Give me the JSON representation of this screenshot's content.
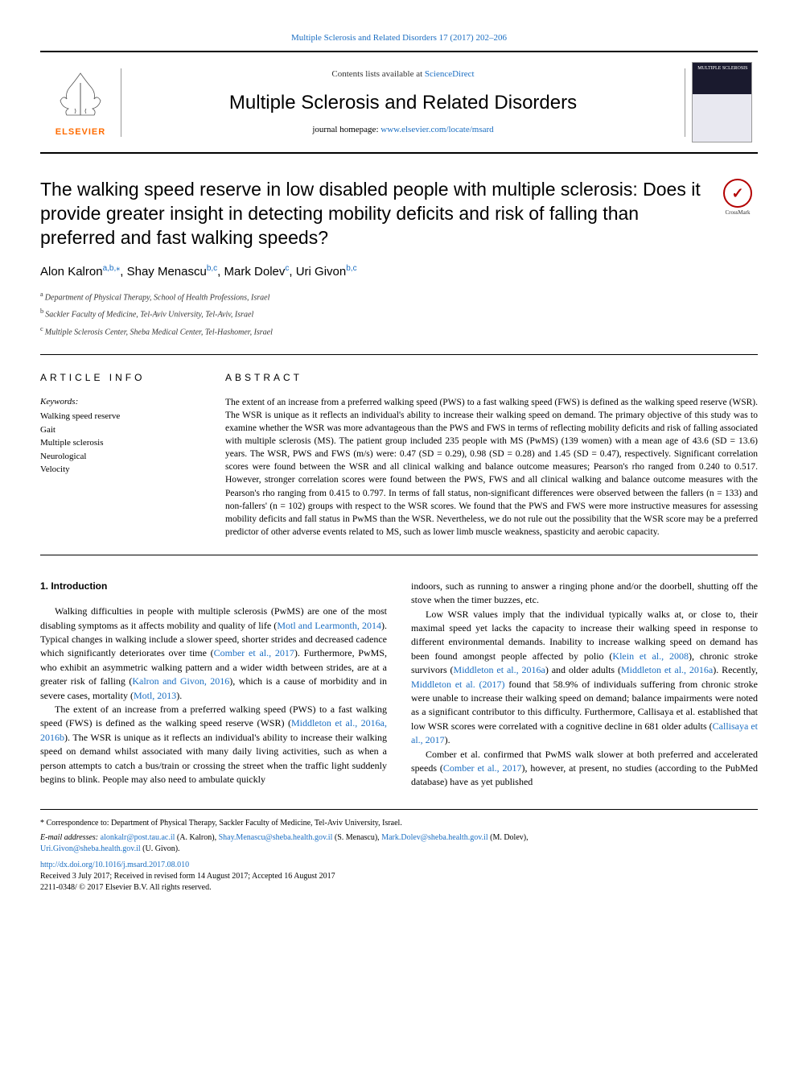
{
  "top_link_journal": "Multiple Sclerosis and Related Disorders 17 (2017) 202–206",
  "header": {
    "contents_prefix": "Contents lists available at ",
    "contents_link": "ScienceDirect",
    "journal_name": "Multiple Sclerosis and Related Disorders",
    "homepage_prefix": "journal homepage: ",
    "homepage_url": "www.elsevier.com/locate/msard",
    "publisher": "ELSEVIER",
    "cover_label": "MULTIPLE\nSCLEROSIS"
  },
  "article": {
    "title": "The walking speed reserve in low disabled people with multiple sclerosis: Does it provide greater insight in detecting mobility deficits and risk of falling than preferred and fast walking speeds?",
    "authors_html": "Alon Kalron<sup>a,b,</sup>*, Shay Menascu<sup>b,c</sup>, Mark Dolev<sup>c</sup>, Uri Givon<sup>b,c</sup>",
    "authors": [
      {
        "name": "Alon Kalron",
        "aff": "a,b,",
        "corr": true
      },
      {
        "name": "Shay Menascu",
        "aff": "b,c"
      },
      {
        "name": "Mark Dolev",
        "aff": "c"
      },
      {
        "name": "Uri Givon",
        "aff": "b,c"
      }
    ],
    "affiliations": [
      {
        "key": "a",
        "text": "Department of Physical Therapy, School of Health Professions, Israel"
      },
      {
        "key": "b",
        "text": "Sackler Faculty of Medicine, Tel-Aviv University, Tel-Aviv, Israel"
      },
      {
        "key": "c",
        "text": "Multiple Sclerosis Center, Sheba Medical Center, Tel-Hashomer, Israel"
      }
    ],
    "crossmark": "CrossMark"
  },
  "info": {
    "heading": "ARTICLE INFO",
    "keywords_label": "Keywords:",
    "keywords": [
      "Walking speed reserve",
      "Gait",
      "Multiple sclerosis",
      "Neurological",
      "Velocity"
    ]
  },
  "abstract": {
    "heading": "ABSTRACT",
    "text": "The extent of an increase from a preferred walking speed (PWS) to a fast walking speed (FWS) is defined as the walking speed reserve (WSR). The WSR is unique as it reflects an individual's ability to increase their walking speed on demand. The primary objective of this study was to examine whether the WSR was more advantageous than the PWS and FWS in terms of reflecting mobility deficits and risk of falling associated with multiple sclerosis (MS). The patient group included 235 people with MS (PwMS) (139 women) with a mean age of 43.6 (SD = 13.6) years. The WSR, PWS and FWS (m/s) were: 0.47 (SD = 0.29), 0.98 (SD = 0.28) and 1.45 (SD = 0.47), respectively. Significant correlation scores were found between the WSR and all clinical walking and balance outcome measures; Pearson's rho ranged from 0.240 to 0.517. However, stronger correlation scores were found between the PWS, FWS and all clinical walking and balance outcome measures with the Pearson's rho ranging from 0.415 to 0.797. In terms of fall status, non-significant differences were observed between the fallers (n = 133) and non-fallers' (n = 102) groups with respect to the WSR scores. We found that the PWS and FWS were more instructive measures for assessing mobility deficits and fall status in PwMS than the WSR. Nevertheless, we do not rule out the possibility that the WSR score may be a preferred predictor of other adverse events related to MS, such as lower limb muscle weakness, spasticity and aerobic capacity."
  },
  "intro": {
    "heading": "1. Introduction",
    "p1a": "Walking difficulties in people with multiple sclerosis (PwMS) are one of the most disabling symptoms as it affects mobility and quality of life (",
    "c1": "Motl and Learmonth, 2014",
    "p1b": "). Typical changes in walking include a slower speed, shorter strides and decreased cadence which significantly deteriorates over time (",
    "c2": "Comber et al., 2017",
    "p1c": "). Furthermore, PwMS, who exhibit an asymmetric walking pattern and a wider width between strides, are at a greater risk of falling (",
    "c3": "Kalron and Givon, 2016",
    "p1d": "), which is a cause of morbidity and in severe cases, mortality (",
    "c4": "Motl, 2013",
    "p1e": ").",
    "p2a": "The extent of an increase from a preferred walking speed (PWS) to a fast walking speed (FWS) is defined as the walking speed reserve (WSR) (",
    "c5": "Middleton et al., 2016a, 2016b",
    "p2b": "). The WSR is unique as it reflects an individual's ability to increase their walking speed on demand whilst associated with many daily living activities, such as when a person attempts to catch a bus/train or crossing the street when the traffic light suddenly begins to blink. People may also need to ambulate quickly",
    "p3": "indoors, such as running to answer a ringing phone and/or the doorbell, shutting off the stove when the timer buzzes, etc.",
    "p4a": "Low WSR values imply that the individual typically walks at, or close to, their maximal speed yet lacks the capacity to increase their walking speed in response to different environmental demands. Inability to increase walking speed on demand has been found amongst people affected by polio (",
    "c6": "Klein et al., 2008",
    "p4b": "), chronic stroke survivors (",
    "c7": "Middleton et al., 2016a",
    "p4c": ") and older adults (",
    "c8": "Middleton et al., 2016a",
    "p4d": "). Recently, ",
    "c9": "Middleton et al. (2017)",
    "p4e": " found that 58.9% of individuals suffering from chronic stroke were unable to increase their walking speed on demand; balance impairments were noted as a significant contributor to this difficulty. Furthermore, Callisaya et al. established that low WSR scores were correlated with a cognitive decline in 681 older adults (",
    "c10": "Callisaya et al., 2017",
    "p4f": ").",
    "p5a": "Comber et al. confirmed that PwMS walk slower at both preferred and accelerated speeds (",
    "c11": "Comber et al., 2017",
    "p5b": "), however, at present, no studies (according to the PubMed database) have as yet published"
  },
  "footer": {
    "corr": "* Correspondence to: Department of Physical Therapy, Sackler Faculty of Medicine, Tel-Aviv University, Israel.",
    "email_prefix": "E-mail addresses: ",
    "emails": [
      {
        "addr": "alonkalr@post.tau.ac.il",
        "who": "(A. Kalron), "
      },
      {
        "addr": "Shay.Menascu@sheba.health.gov.il",
        "who": "(S. Menascu), "
      },
      {
        "addr": "Mark.Dolev@sheba.health.gov.il",
        "who": "(M. Dolev),"
      },
      {
        "addr": "Uri.Givon@sheba.health.gov.il",
        "who": "(U. Givon)."
      }
    ],
    "doi": "http://dx.doi.org/10.1016/j.msard.2017.08.010",
    "received": "Received 3 July 2017; Received in revised form 14 August 2017; Accepted 16 August 2017",
    "copyright": "2211-0348/ © 2017 Elsevier B.V. All rights reserved."
  },
  "colors": {
    "link": "#1b6ec2",
    "elsevier_orange": "#ff6c00",
    "crossmark_red": "#b30000"
  }
}
